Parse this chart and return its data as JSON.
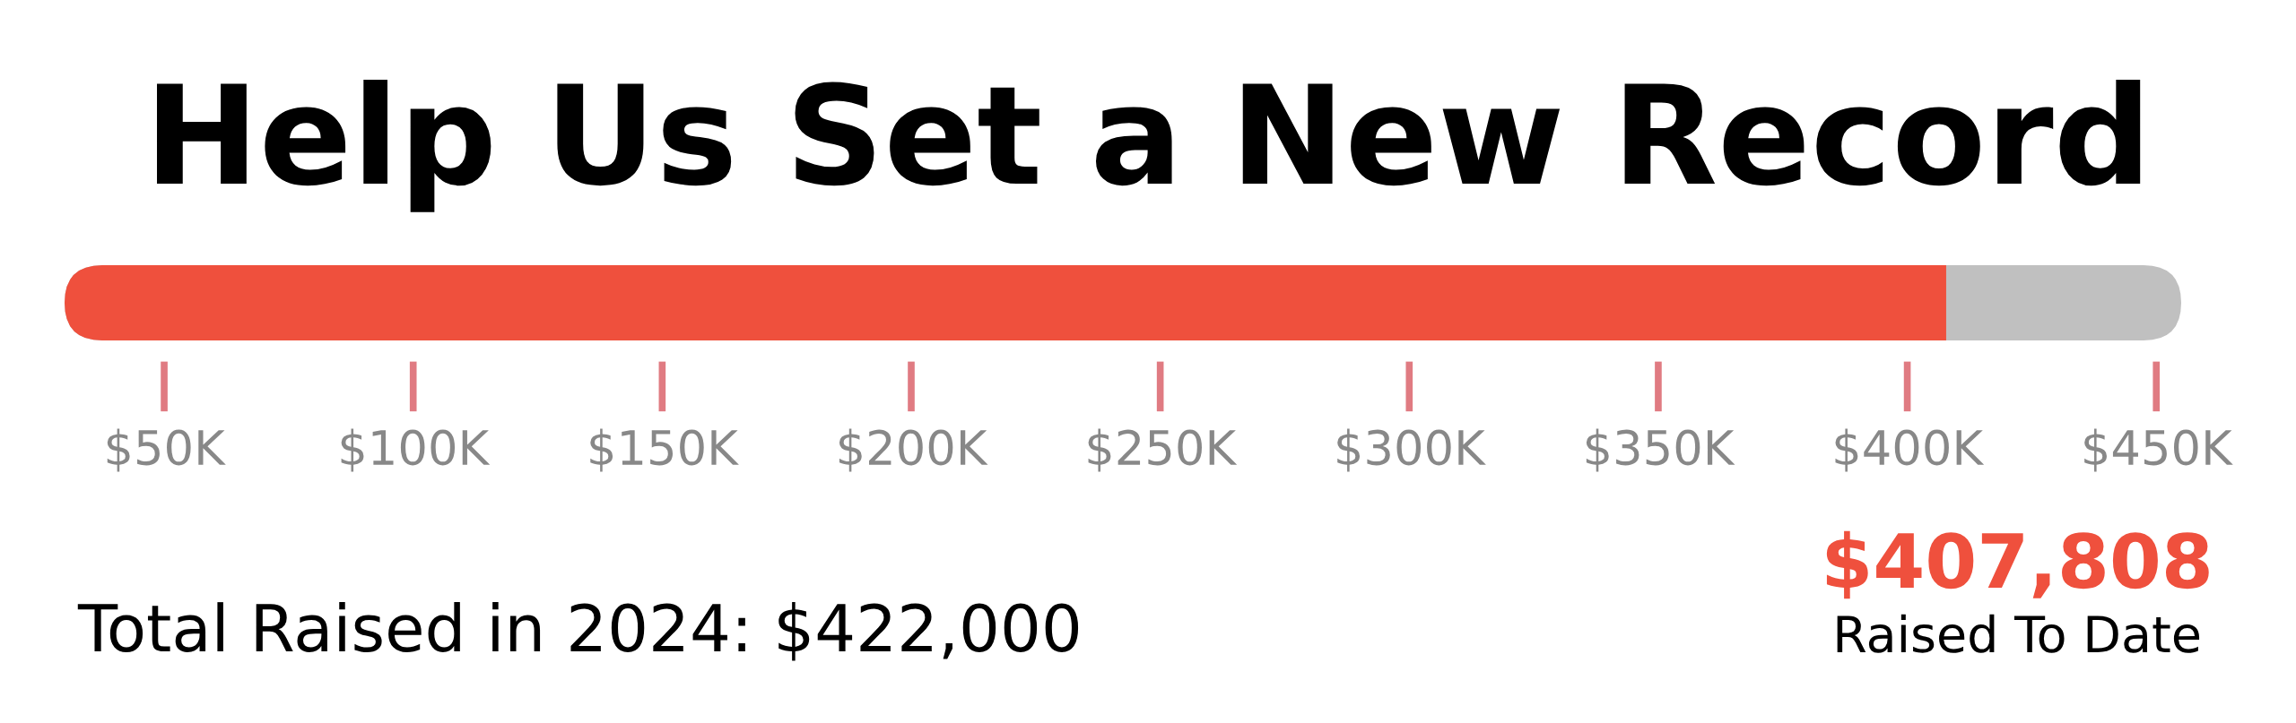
{
  "chart_data": {
    "type": "bar",
    "orientation": "horizontal",
    "title": "Help Us Set a New Record",
    "categories": [
      null
    ],
    "values": [
      407808
    ],
    "color": "#ef503d",
    "xlim": [
      30000,
      455000
    ],
    "xticks": [
      {
        "value": 50000,
        "label": "$50K"
      },
      {
        "value": 100000,
        "label": "$100K"
      },
      {
        "value": 150000,
        "label": "$150K"
      },
      {
        "value": 200000,
        "label": "$200K"
      },
      {
        "value": 250000,
        "label": "$250K"
      },
      {
        "value": 300000,
        "label": "$300K"
      },
      {
        "value": 350000,
        "label": "$350K"
      },
      {
        "value": 400000,
        "label": "$400K"
      },
      {
        "value": 450000,
        "label": "$450K"
      }
    ],
    "tick_labels": "x",
    "annotations": [
      "$407,808",
      "Raised To Date",
      "Total Raised in 2024: $422,000"
    ]
  }
}
